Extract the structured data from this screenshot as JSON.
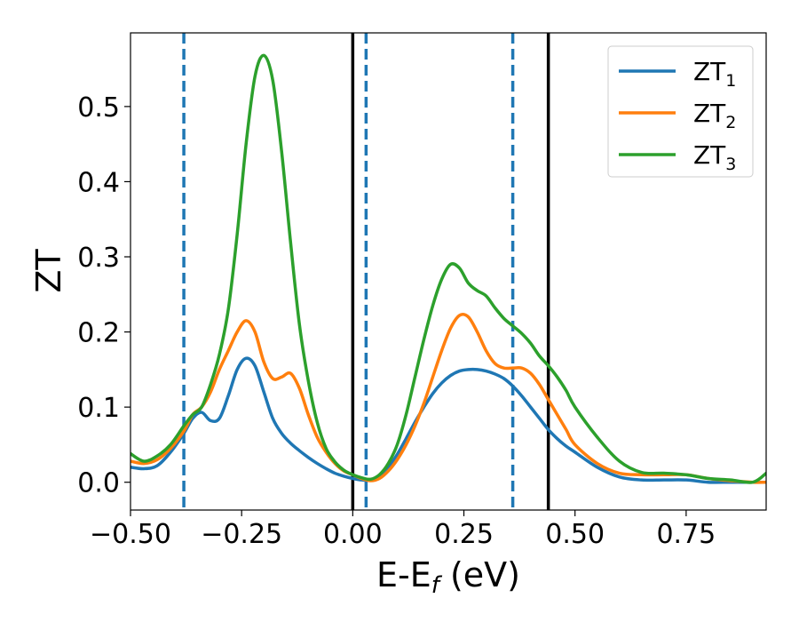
{
  "chart_data": {
    "type": "line",
    "title": "",
    "xlabel": "E-E",
    "xlabel_sub": "f",
    "xlabel_unit": " (eV)",
    "ylabel": "ZT",
    "xlim": [
      -0.5,
      0.93
    ],
    "ylim": [
      -0.037,
      0.598
    ],
    "grid": false,
    "legend": "top-right",
    "xticks": [
      -0.5,
      -0.25,
      0.0,
      0.25,
      0.5,
      0.75
    ],
    "xtick_labels": [
      "−0.50",
      "−0.25",
      "0.00",
      "0.25",
      "0.50",
      "0.75"
    ],
    "yticks": [
      0.0,
      0.1,
      0.2,
      0.3,
      0.4,
      0.5
    ],
    "ytick_labels": [
      "0.0",
      "0.1",
      "0.2",
      "0.3",
      "0.4",
      "0.5"
    ],
    "vlines": [
      {
        "x": 0.0,
        "style": "solid",
        "color": "#000000"
      },
      {
        "x": 0.44,
        "style": "solid",
        "color": "#000000"
      },
      {
        "x": -0.38,
        "style": "dashed",
        "color": "#1f77b4"
      },
      {
        "x": 0.03,
        "style": "dashed",
        "color": "#1f77b4"
      },
      {
        "x": 0.36,
        "style": "dashed",
        "color": "#1f77b4"
      }
    ],
    "series": [
      {
        "name": "ZT",
        "name_sub": "1",
        "color": "#1f77b4",
        "x": [
          -0.5,
          -0.47,
          -0.44,
          -0.41,
          -0.38,
          -0.36,
          -0.34,
          -0.32,
          -0.3,
          -0.28,
          -0.26,
          -0.24,
          -0.22,
          -0.2,
          -0.18,
          -0.16,
          -0.14,
          -0.12,
          -0.1,
          -0.08,
          -0.06,
          -0.04,
          -0.02,
          0.0,
          0.02,
          0.04,
          0.06,
          0.08,
          0.1,
          0.12,
          0.14,
          0.16,
          0.18,
          0.2,
          0.22,
          0.24,
          0.26,
          0.28,
          0.3,
          0.32,
          0.34,
          0.36,
          0.38,
          0.4,
          0.42,
          0.44,
          0.46,
          0.48,
          0.5,
          0.55,
          0.6,
          0.65,
          0.7,
          0.75,
          0.8,
          0.85,
          0.9,
          0.93
        ],
        "y": [
          0.02,
          0.018,
          0.022,
          0.04,
          0.065,
          0.085,
          0.093,
          0.082,
          0.085,
          0.115,
          0.15,
          0.165,
          0.155,
          0.12,
          0.085,
          0.065,
          0.052,
          0.042,
          0.033,
          0.025,
          0.018,
          0.012,
          0.008,
          0.005,
          0.003,
          0.003,
          0.008,
          0.02,
          0.037,
          0.058,
          0.08,
          0.1,
          0.118,
          0.132,
          0.142,
          0.148,
          0.15,
          0.15,
          0.148,
          0.144,
          0.138,
          0.128,
          0.115,
          0.1,
          0.085,
          0.07,
          0.058,
          0.048,
          0.04,
          0.02,
          0.007,
          0.003,
          0.003,
          0.003,
          0.0,
          0.0,
          0.0,
          0.0
        ]
      },
      {
        "name": "ZT",
        "name_sub": "2",
        "color": "#ff7f0e",
        "x": [
          -0.5,
          -0.47,
          -0.44,
          -0.41,
          -0.38,
          -0.36,
          -0.34,
          -0.32,
          -0.3,
          -0.28,
          -0.26,
          -0.24,
          -0.22,
          -0.2,
          -0.18,
          -0.16,
          -0.14,
          -0.12,
          -0.1,
          -0.08,
          -0.06,
          -0.04,
          -0.02,
          0.0,
          0.02,
          0.04,
          0.06,
          0.08,
          0.1,
          0.12,
          0.14,
          0.16,
          0.18,
          0.2,
          0.22,
          0.24,
          0.26,
          0.28,
          0.3,
          0.32,
          0.34,
          0.36,
          0.38,
          0.4,
          0.42,
          0.44,
          0.46,
          0.48,
          0.5,
          0.55,
          0.6,
          0.65,
          0.7,
          0.75,
          0.8,
          0.85,
          0.9,
          0.93
        ],
        "y": [
          0.028,
          0.025,
          0.03,
          0.045,
          0.068,
          0.09,
          0.1,
          0.12,
          0.15,
          0.175,
          0.2,
          0.215,
          0.2,
          0.16,
          0.138,
          0.14,
          0.145,
          0.125,
          0.09,
          0.06,
          0.04,
          0.025,
          0.015,
          0.01,
          0.005,
          0.002,
          0.005,
          0.015,
          0.03,
          0.05,
          0.075,
          0.105,
          0.14,
          0.175,
          0.205,
          0.222,
          0.22,
          0.2,
          0.175,
          0.158,
          0.152,
          0.152,
          0.152,
          0.145,
          0.13,
          0.11,
          0.09,
          0.07,
          0.05,
          0.025,
          0.012,
          0.01,
          0.01,
          0.01,
          0.005,
          0.002,
          0.0,
          0.0
        ]
      },
      {
        "name": "ZT",
        "name_sub": "3",
        "color": "#2ca02c",
        "x": [
          -0.5,
          -0.47,
          -0.44,
          -0.41,
          -0.38,
          -0.36,
          -0.34,
          -0.32,
          -0.3,
          -0.28,
          -0.26,
          -0.24,
          -0.22,
          -0.2,
          -0.18,
          -0.16,
          -0.14,
          -0.12,
          -0.1,
          -0.08,
          -0.06,
          -0.04,
          -0.02,
          0.0,
          0.02,
          0.04,
          0.06,
          0.08,
          0.1,
          0.12,
          0.14,
          0.16,
          0.18,
          0.2,
          0.22,
          0.24,
          0.26,
          0.28,
          0.3,
          0.32,
          0.34,
          0.36,
          0.38,
          0.4,
          0.42,
          0.44,
          0.46,
          0.48,
          0.5,
          0.55,
          0.6,
          0.65,
          0.7,
          0.75,
          0.8,
          0.85,
          0.9,
          0.93
        ],
        "y": [
          0.038,
          0.028,
          0.035,
          0.05,
          0.075,
          0.09,
          0.1,
          0.13,
          0.17,
          0.23,
          0.33,
          0.45,
          0.54,
          0.568,
          0.535,
          0.44,
          0.32,
          0.21,
          0.135,
          0.08,
          0.045,
          0.027,
          0.016,
          0.01,
          0.006,
          0.004,
          0.01,
          0.025,
          0.05,
          0.09,
          0.14,
          0.19,
          0.235,
          0.27,
          0.29,
          0.285,
          0.265,
          0.255,
          0.248,
          0.232,
          0.218,
          0.208,
          0.198,
          0.185,
          0.168,
          0.155,
          0.14,
          0.122,
          0.1,
          0.06,
          0.028,
          0.013,
          0.012,
          0.01,
          0.005,
          0.003,
          0.0,
          0.012
        ]
      }
    ]
  }
}
